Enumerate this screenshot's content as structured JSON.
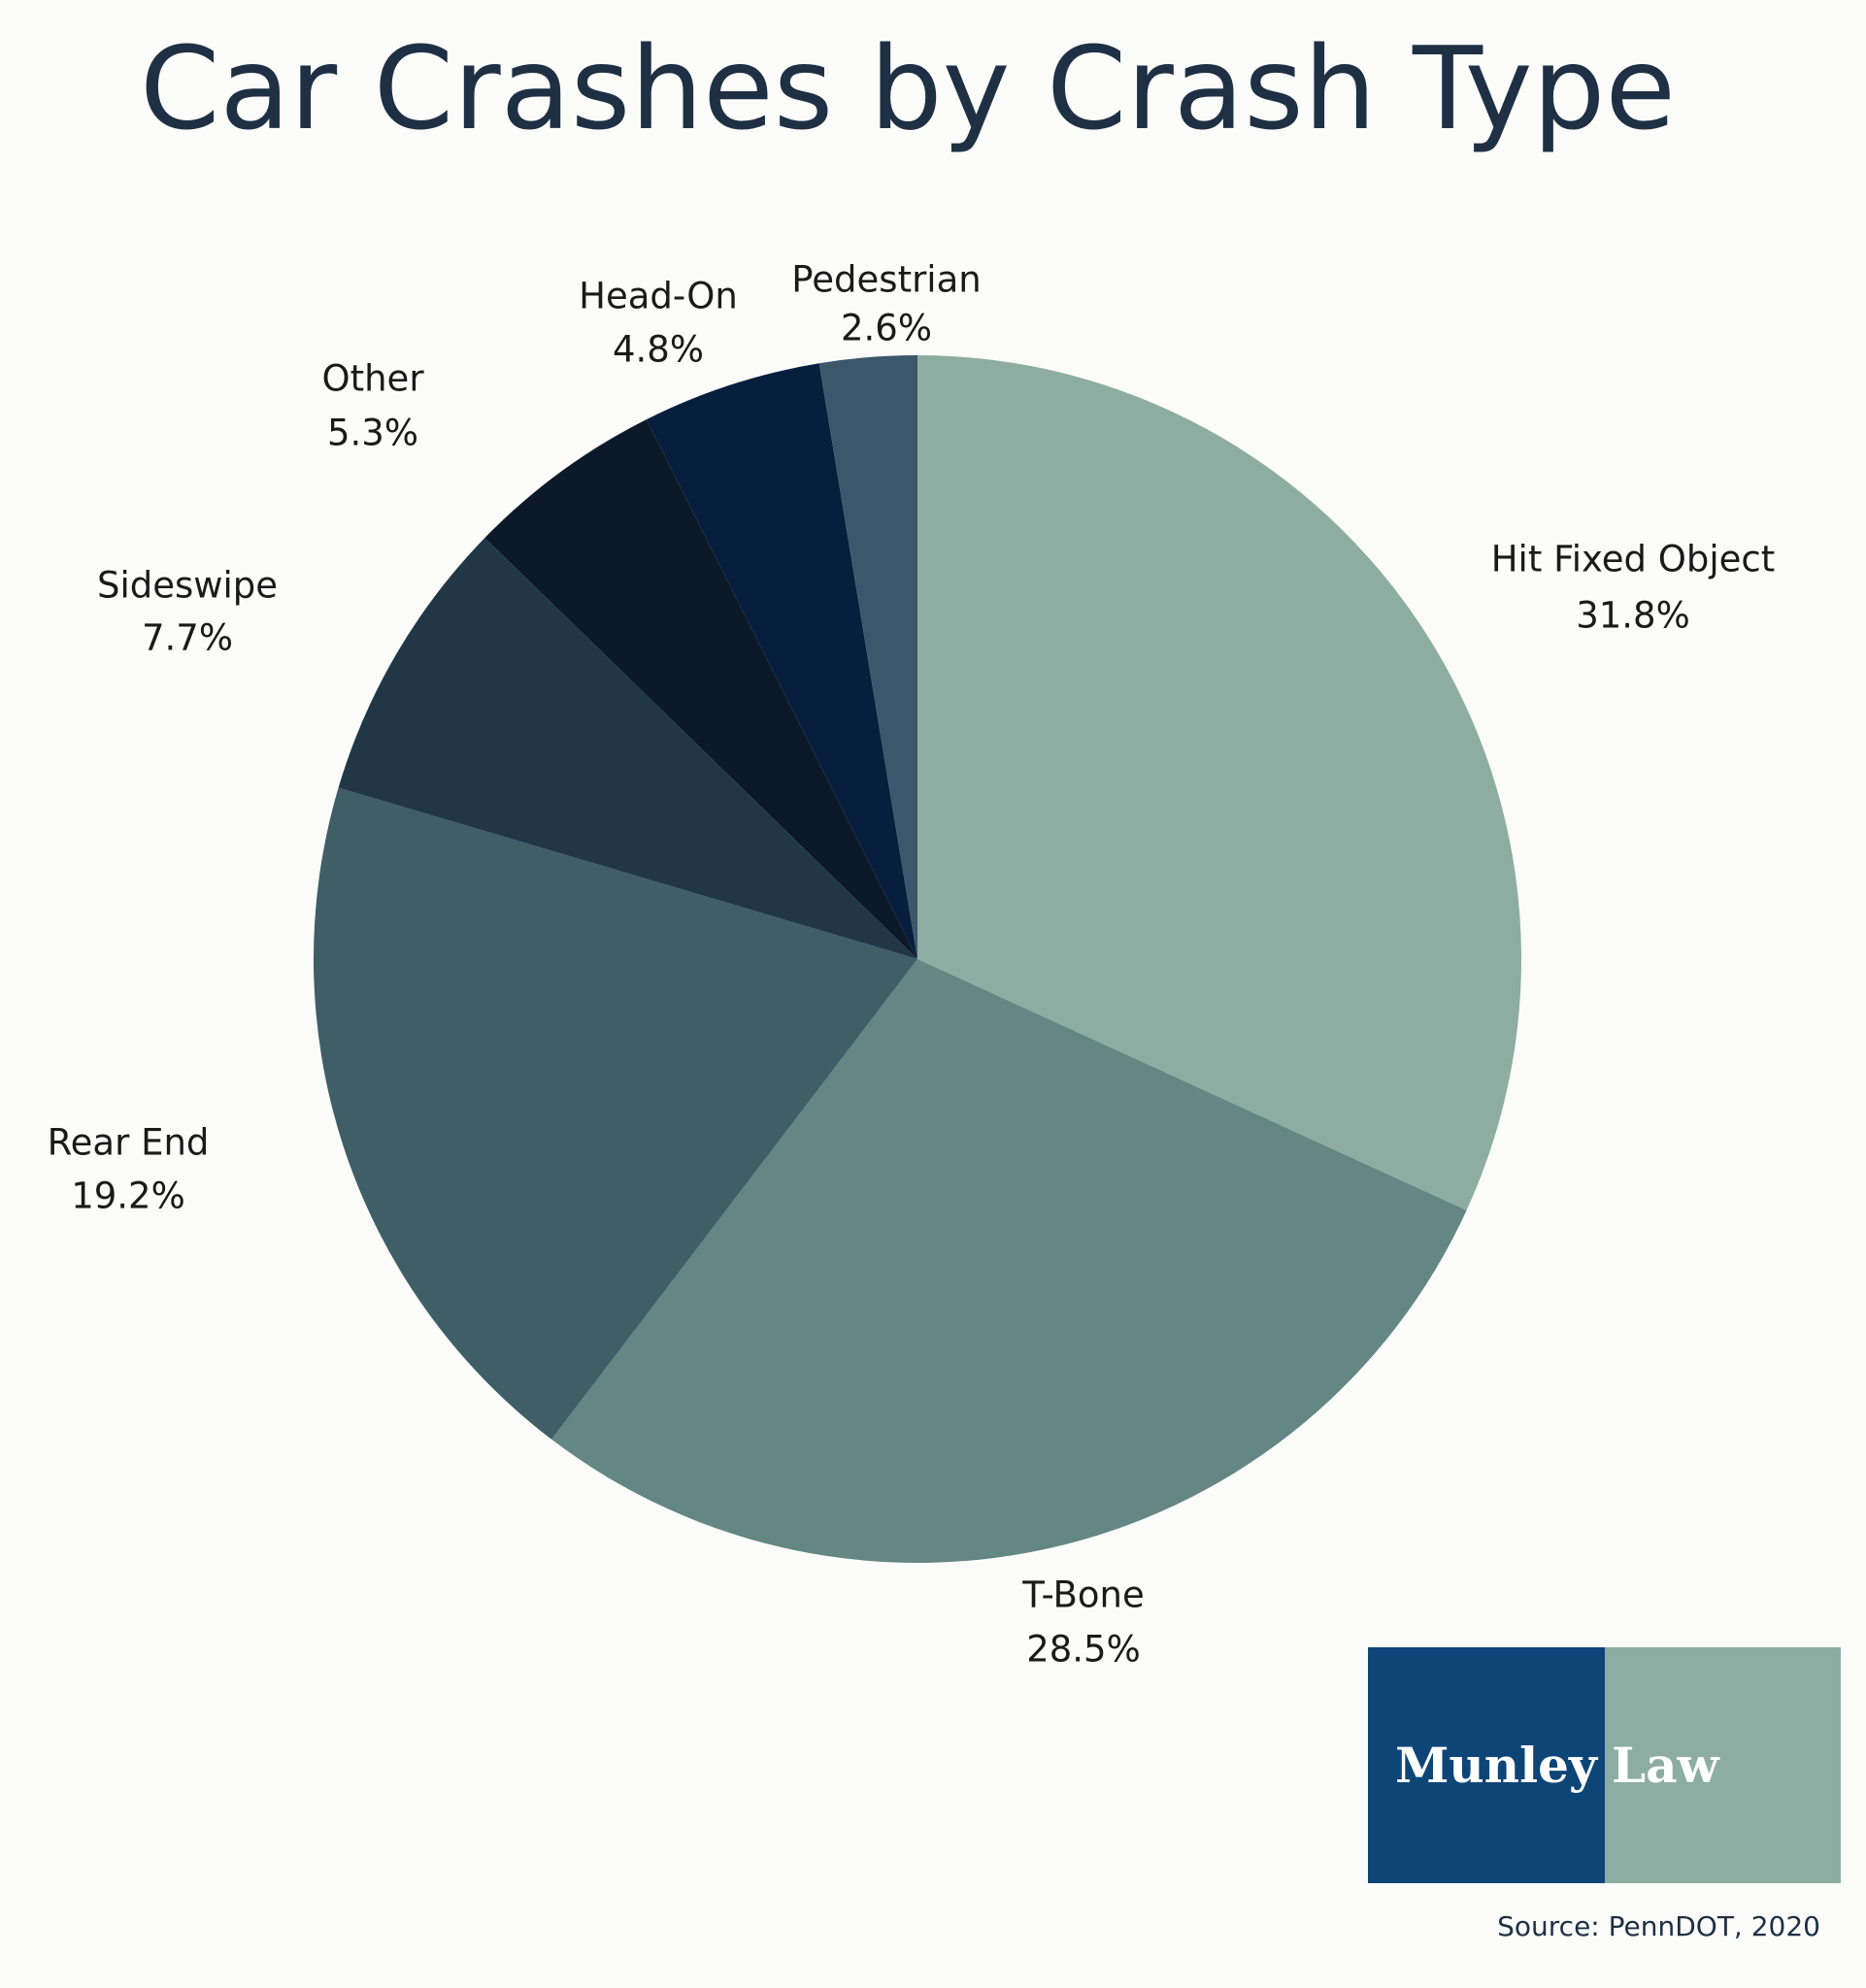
{
  "chart_data": {
    "type": "pie",
    "title": "Car Crashes by Crash Type",
    "categories": [
      "Hit Fixed Object",
      "T-Bone",
      "Rear End",
      "Sideswipe",
      "Other",
      "Head-On",
      "Pedestrian"
    ],
    "values": [
      31.8,
      28.5,
      19.2,
      7.7,
      5.3,
      4.8,
      2.6
    ],
    "value_labels": [
      "31.8%",
      "28.5%",
      "19.2%",
      "7.7%",
      "5.3%",
      "4.8%",
      "2.6%"
    ],
    "colors": [
      "#8eada2",
      "#648684",
      "#3f5e66",
      "#223746",
      "#0b1929",
      "#071f3c",
      "#3d566b"
    ],
    "logo": {
      "left": "Munley",
      "right": "Law"
    },
    "source": "Source: PennDOT, 2020"
  }
}
